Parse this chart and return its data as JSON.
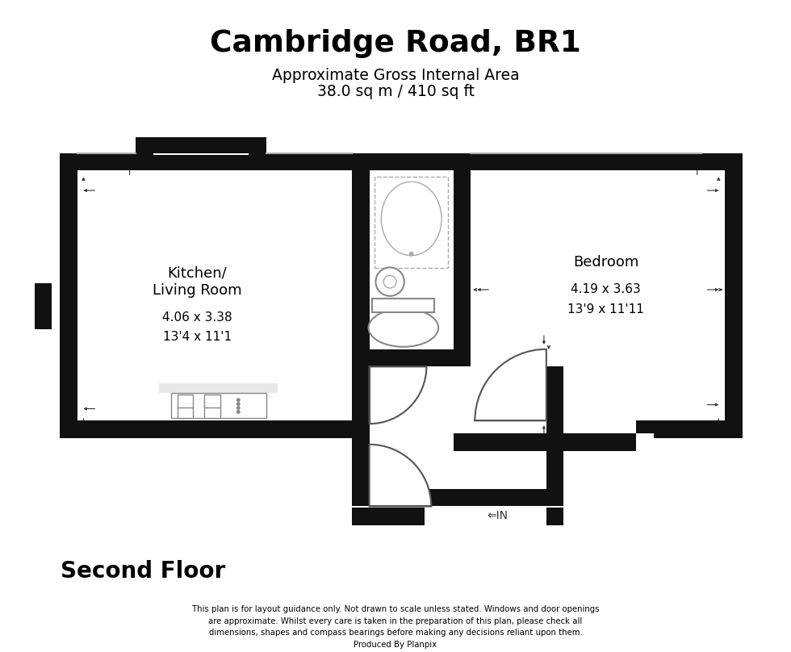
{
  "title": "Cambridge Road, BR1",
  "subtitle1": "Approximate Gross Internal Area",
  "subtitle2": "38.0 sq m / 410 sq ft",
  "floor_label": "Second Floor",
  "disclaimer": "This plan is for layout guidance only. Not drawn to scale unless stated. Windows and door openings\nare approximate. Whilst every care is taken in the preparation of this plan, please check all\ndimensions, shapes and compass bearings before making any decisions reliant upon them.\nProduced By Planpix",
  "room1_name": "Kitchen/\nLiving Room",
  "room1_dims1": "4.06 x 3.38",
  "room1_dims2": "13'4 x 11'1",
  "room2_name": "Bedroom",
  "room2_dims1": "4.19 x 3.63",
  "room2_dims2": "13'9 x 11'11",
  "wall_color": "#111111",
  "floor_color": "#ffffff",
  "bg_color": "#ffffff",
  "dim_line_color": "#666666",
  "fixture_color": "#aaaaaa",
  "fixture_line": "#888888"
}
